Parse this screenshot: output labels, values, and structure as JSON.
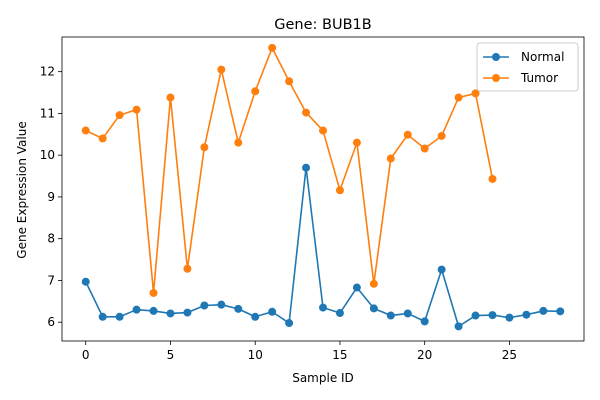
{
  "chart_data": {
    "type": "line",
    "title": "Gene: BUB1B",
    "xlabel": "Sample ID",
    "ylabel": "Gene Expression Value",
    "xlim": [
      -1.4,
      29.4
    ],
    "ylim": [
      5.55,
      12.83
    ],
    "xticks": [
      0,
      5,
      10,
      15,
      20,
      25
    ],
    "yticks": [
      6,
      7,
      8,
      9,
      10,
      11,
      12
    ],
    "grid": false,
    "legend": "upper right",
    "series": [
      {
        "name": "Normal",
        "color": "#1f77b4",
        "x": [
          0,
          1,
          2,
          3,
          4,
          5,
          6,
          7,
          8,
          9,
          10,
          11,
          12,
          13,
          14,
          15,
          16,
          17,
          18,
          19,
          20,
          21,
          22,
          23,
          24,
          25,
          26,
          27,
          28
        ],
        "values": [
          6.97,
          6.13,
          6.13,
          6.3,
          6.27,
          6.21,
          6.23,
          6.4,
          6.42,
          6.32,
          6.13,
          6.25,
          5.98,
          9.7,
          6.35,
          6.22,
          6.83,
          6.33,
          6.16,
          6.21,
          6.02,
          7.26,
          5.9,
          6.16,
          6.17,
          6.11,
          6.18,
          6.27,
          6.26
        ]
      },
      {
        "name": "Tumor",
        "color": "#ff7f0e",
        "x": [
          0,
          1,
          2,
          3,
          4,
          5,
          6,
          7,
          8,
          9,
          10,
          11,
          12,
          13,
          14,
          15,
          16,
          17,
          18,
          19,
          20,
          21,
          22,
          23,
          24
        ],
        "values": [
          10.59,
          10.4,
          10.96,
          11.09,
          6.7,
          11.38,
          7.28,
          10.19,
          12.05,
          10.3,
          11.53,
          12.57,
          11.77,
          11.02,
          10.59,
          9.16,
          10.3,
          6.92,
          9.92,
          10.49,
          10.16,
          10.46,
          11.38,
          11.48,
          9.43
        ]
      }
    ]
  }
}
